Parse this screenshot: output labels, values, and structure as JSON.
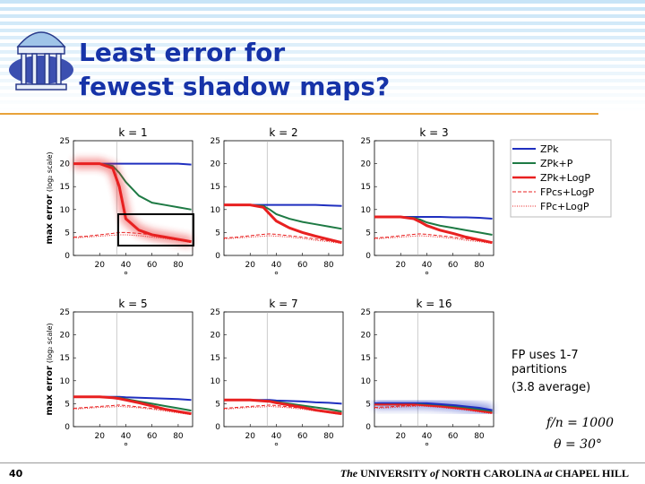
{
  "slide": {
    "title_lines": [
      "Least error for",
      "fewest shadow maps?"
    ],
    "page": "40",
    "footer": [
      "The",
      " UNIVERSITY ",
      "of",
      " NORTH CAROLINA ",
      "at",
      " CHAPEL HILL"
    ],
    "note_lines": [
      "FP uses 1-7",
      "partitions",
      "(3.8 average)"
    ],
    "formula_lines": [
      "f/n = 1000",
      "θ = 30°"
    ]
  },
  "chart_data": [
    {
      "type": "line",
      "title": "k = 1",
      "ylabel": "max error",
      "ylabel_unit": "(log₂ scale)",
      "xlabel": "°",
      "xlim": [
        0,
        91
      ],
      "ylim": [
        0,
        25
      ],
      "xticks": [
        20,
        40,
        60,
        80
      ],
      "yticks": [
        0,
        5,
        10,
        15,
        20,
        25
      ],
      "vline": 33,
      "highlight": 2,
      "box": true,
      "x": [
        0,
        10,
        20,
        30,
        35,
        40,
        50,
        60,
        70,
        80,
        90
      ],
      "series": [
        {
          "name": "ZPk",
          "color": "#1f2fbf",
          "style": "solid",
          "values": [
            20,
            20,
            20,
            20,
            20,
            20,
            20,
            20,
            20,
            20,
            19.8
          ]
        },
        {
          "name": "ZPk+P",
          "color": "#1e7a44",
          "style": "solid",
          "values": [
            20,
            20,
            20,
            19.5,
            18,
            16,
            13,
            11.5,
            11,
            10.5,
            10
          ]
        },
        {
          "name": "ZPk+LogP",
          "color": "#e82020",
          "style": "thick",
          "values": [
            20,
            20,
            20,
            19,
            15,
            8,
            5.5,
            4.5,
            4,
            3.5,
            3
          ]
        },
        {
          "name": "FPcs+LogP",
          "color": "#e82020",
          "style": "dashed",
          "values": [
            4,
            4.2,
            4.5,
            4.8,
            5,
            5,
            4.8,
            4.5,
            4,
            3.5,
            3
          ]
        },
        {
          "name": "FPc+LogP",
          "color": "#e82020",
          "style": "dotted",
          "values": [
            3.8,
            4,
            4.2,
            4.4,
            4.5,
            4.5,
            4.3,
            4,
            3.7,
            3.3,
            2.8
          ]
        }
      ]
    },
    {
      "type": "line",
      "title": "k = 2",
      "xlabel": "°",
      "xlim": [
        0,
        91
      ],
      "ylim": [
        0,
        25
      ],
      "xticks": [
        20,
        40,
        60,
        80
      ],
      "yticks": [
        0,
        5,
        10,
        15,
        20,
        25
      ],
      "vline": 33,
      "x": [
        0,
        10,
        20,
        30,
        35,
        40,
        50,
        60,
        70,
        80,
        90
      ],
      "series": [
        {
          "color": "#1f2fbf",
          "style": "solid",
          "values": [
            11,
            11,
            11,
            11,
            11,
            11,
            11,
            11,
            11,
            10.9,
            10.8
          ]
        },
        {
          "color": "#1e7a44",
          "style": "solid",
          "values": [
            11,
            11,
            11,
            10.8,
            10,
            9,
            8,
            7.3,
            6.8,
            6.3,
            5.8
          ]
        },
        {
          "color": "#e82020",
          "style": "thick",
          "values": [
            11,
            11,
            11,
            10.5,
            9,
            7.5,
            6,
            5,
            4.2,
            3.5,
            2.8
          ]
        },
        {
          "color": "#e82020",
          "style": "dashed",
          "values": [
            3.8,
            4,
            4.3,
            4.6,
            4.7,
            4.6,
            4.3,
            4,
            3.6,
            3.2,
            2.8
          ]
        },
        {
          "color": "#e82020",
          "style": "dotted",
          "values": [
            3.6,
            3.8,
            4,
            4.2,
            4.3,
            4.2,
            4,
            3.7,
            3.3,
            3,
            2.6
          ]
        }
      ]
    },
    {
      "type": "line",
      "title": "k = 3",
      "xlabel": "°",
      "xlim": [
        0,
        91
      ],
      "ylim": [
        0,
        25
      ],
      "xticks": [
        20,
        40,
        60,
        80
      ],
      "yticks": [
        0,
        5,
        10,
        15,
        20,
        25
      ],
      "vline": 33,
      "x": [
        0,
        10,
        20,
        30,
        35,
        40,
        50,
        60,
        70,
        80,
        90
      ],
      "series": [
        {
          "color": "#1f2fbf",
          "style": "solid",
          "values": [
            8.4,
            8.4,
            8.4,
            8.4,
            8.4,
            8.4,
            8.4,
            8.3,
            8.3,
            8.2,
            8
          ]
        },
        {
          "color": "#1e7a44",
          "style": "solid",
          "values": [
            8.4,
            8.4,
            8.4,
            8.2,
            7.8,
            7.2,
            6.5,
            6,
            5.5,
            5,
            4.5
          ]
        },
        {
          "color": "#e82020",
          "style": "thick",
          "values": [
            8.4,
            8.4,
            8.4,
            8,
            7.3,
            6.5,
            5.5,
            4.8,
            4,
            3.4,
            2.8
          ]
        },
        {
          "color": "#e82020",
          "style": "dashed",
          "values": [
            3.8,
            4,
            4.3,
            4.6,
            4.7,
            4.6,
            4.3,
            4,
            3.6,
            3.2,
            2.8
          ]
        },
        {
          "color": "#e82020",
          "style": "dotted",
          "values": [
            3.6,
            3.8,
            4,
            4.2,
            4.3,
            4.2,
            4,
            3.7,
            3.3,
            3,
            2.6
          ]
        }
      ]
    },
    {
      "type": "line",
      "title": "k = 5",
      "ylabel": "max error",
      "ylabel_unit": "(log₂ scale)",
      "xlabel": "°",
      "xlim": [
        0,
        91
      ],
      "ylim": [
        0,
        25
      ],
      "xticks": [
        20,
        40,
        60,
        80
      ],
      "yticks": [
        0,
        5,
        10,
        15,
        20,
        25
      ],
      "vline": 33,
      "x": [
        0,
        10,
        20,
        30,
        35,
        40,
        50,
        60,
        70,
        80,
        90
      ],
      "series": [
        {
          "color": "#1f2fbf",
          "style": "solid",
          "values": [
            6.5,
            6.5,
            6.5,
            6.5,
            6.5,
            6.4,
            6.3,
            6.2,
            6.1,
            6,
            5.8
          ]
        },
        {
          "color": "#1e7a44",
          "style": "solid",
          "values": [
            6.5,
            6.5,
            6.5,
            6.4,
            6.3,
            6,
            5.5,
            5,
            4.5,
            4,
            3.5
          ]
        },
        {
          "color": "#e82020",
          "style": "thick",
          "values": [
            6.5,
            6.5,
            6.5,
            6.3,
            6.1,
            5.8,
            5.2,
            4.5,
            3.8,
            3.3,
            2.8
          ]
        },
        {
          "color": "#e82020",
          "style": "dashed",
          "values": [
            4,
            4.2,
            4.4,
            4.6,
            4.7,
            4.6,
            4.3,
            4,
            3.6,
            3.2,
            2.8
          ]
        },
        {
          "color": "#e82020",
          "style": "dotted",
          "values": [
            3.8,
            4,
            4.2,
            4.3,
            4.4,
            4.3,
            4.1,
            3.8,
            3.4,
            3,
            2.6
          ]
        }
      ]
    },
    {
      "type": "line",
      "title": "k = 7",
      "xlabel": "°",
      "xlim": [
        0,
        91
      ],
      "ylim": [
        0,
        25
      ],
      "xticks": [
        20,
        40,
        60,
        80
      ],
      "yticks": [
        0,
        5,
        10,
        15,
        20,
        25
      ],
      "vline": 33,
      "x": [
        0,
        10,
        20,
        30,
        35,
        40,
        50,
        60,
        70,
        80,
        90
      ],
      "series": [
        {
          "color": "#1f2fbf",
          "style": "solid",
          "values": [
            5.8,
            5.8,
            5.8,
            5.8,
            5.8,
            5.7,
            5.6,
            5.5,
            5.3,
            5.2,
            5
          ]
        },
        {
          "color": "#1e7a44",
          "style": "solid",
          "values": [
            5.8,
            5.8,
            5.8,
            5.7,
            5.6,
            5.4,
            5,
            4.6,
            4.2,
            3.8,
            3.3
          ]
        },
        {
          "color": "#e82020",
          "style": "thick",
          "values": [
            5.8,
            5.8,
            5.8,
            5.6,
            5.5,
            5.2,
            4.7,
            4.2,
            3.6,
            3.2,
            2.8
          ]
        },
        {
          "color": "#e82020",
          "style": "dashed",
          "values": [
            4,
            4.2,
            4.4,
            4.6,
            4.7,
            4.6,
            4.3,
            4,
            3.6,
            3.2,
            2.8
          ]
        },
        {
          "color": "#e82020",
          "style": "dotted",
          "values": [
            3.8,
            4,
            4.2,
            4.3,
            4.4,
            4.3,
            4.1,
            3.8,
            3.4,
            3,
            2.6
          ]
        }
      ]
    },
    {
      "type": "line",
      "title": "k = 16",
      "xlabel": "°",
      "xlim": [
        0,
        91
      ],
      "ylim": [
        0,
        25
      ],
      "xticks": [
        20,
        40,
        60,
        80
      ],
      "yticks": [
        0,
        5,
        10,
        15,
        20,
        25
      ],
      "vline": 33,
      "highlight": 0,
      "x": [
        0,
        10,
        20,
        30,
        35,
        40,
        50,
        60,
        70,
        80,
        90
      ],
      "series": [
        {
          "color": "#1f2fbf",
          "style": "thick",
          "values": [
            5,
            5,
            5,
            5,
            5,
            5,
            4.8,
            4.6,
            4.3,
            4,
            3.5
          ]
        },
        {
          "color": "#1e7a44",
          "style": "solid",
          "values": [
            4.8,
            4.8,
            4.8,
            4.8,
            4.8,
            4.7,
            4.5,
            4.3,
            4,
            3.7,
            3.2
          ]
        },
        {
          "color": "#e82020",
          "style": "solid",
          "values": [
            4.8,
            4.8,
            4.8,
            4.8,
            4.7,
            4.6,
            4.4,
            4.1,
            3.8,
            3.4,
            3
          ]
        },
        {
          "color": "#e82020",
          "style": "dashed",
          "values": [
            4.2,
            4.3,
            4.5,
            4.6,
            4.7,
            4.6,
            4.4,
            4.1,
            3.8,
            3.4,
            3
          ]
        },
        {
          "color": "#e82020",
          "style": "dotted",
          "values": [
            4,
            4.1,
            4.3,
            4.4,
            4.5,
            4.4,
            4.2,
            3.9,
            3.6,
            3.2,
            2.8
          ]
        }
      ]
    }
  ]
}
